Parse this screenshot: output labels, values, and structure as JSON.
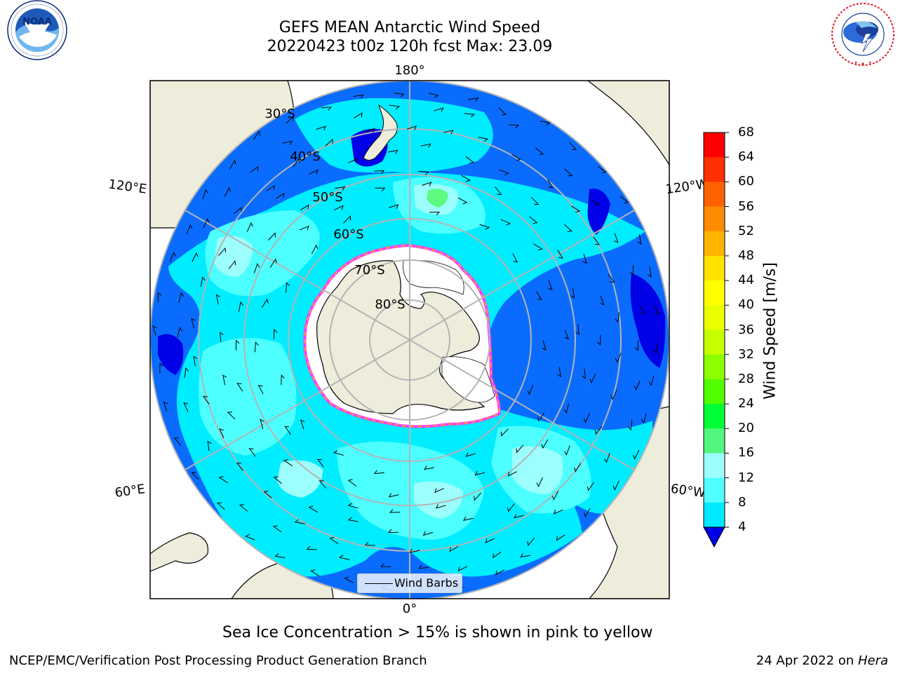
{
  "header": {
    "title_line1": "GEFS MEAN Antarctic Wind Speed",
    "title_line2": "20220423 t00z 120h fcst   Max: 23.09"
  },
  "logos": {
    "left": {
      "icon": "noaa-logo-icon",
      "text": "NOAA",
      "ring_text": "NATIONAL OCEANIC AND ATMOSPHERIC ADMINISTRATION · U.S. DEPARTMENT OF COMMERCE"
    },
    "right": {
      "icon": "nws-logo-icon",
      "ring_text": "NATIONAL WEATHER SERVICE"
    }
  },
  "map": {
    "longitude_labels": [
      "180°",
      "120°E",
      "120°W",
      "60°E",
      "60°W",
      "0°"
    ],
    "latitude_labels": [
      "30°S",
      "40°S",
      "50°S",
      "60°S",
      "70°S",
      "80°S"
    ],
    "legend_label": "Wind Barbs",
    "colors": {
      "ocean_4_8": "#0a6cff",
      "ocean_8_12": "#00ecff",
      "ocean_12_16": "#4dffff",
      "ocean_16_20": "#9cfffd",
      "ocean_20_24": "#5dfa80",
      "land": "#eeecdb",
      "ice": "#ffffff",
      "ice_edge": [
        "#ff3cff",
        "#ffb400"
      ],
      "grid": "#b4b4b4"
    }
  },
  "colorbar": {
    "label": "Wind Speed [m/s]",
    "ticks": [
      "68",
      "64",
      "60",
      "56",
      "52",
      "48",
      "44",
      "40",
      "36",
      "32",
      "28",
      "24",
      "20",
      "16",
      "12",
      "8",
      "4"
    ],
    "colors": [
      "#ff0000",
      "#ff3000",
      "#ff6000",
      "#ff8c00",
      "#ffb400",
      "#ffe100",
      "#ffff00",
      "#eaff00",
      "#c6ff00",
      "#8cff00",
      "#52ff00",
      "#00ff33",
      "#52f77d",
      "#9cfffd",
      "#50ffff",
      "#00e8ff",
      "#006dff"
    ],
    "under_color": "#0000e6"
  },
  "note": "Sea Ice Concentration > 15% is shown in pink to yellow",
  "footer": {
    "left": "NCEP/EMC/Verification Post Processing Product Generation Branch",
    "right_date": "24 Apr 2022 on",
    "right_host": "Hera"
  }
}
